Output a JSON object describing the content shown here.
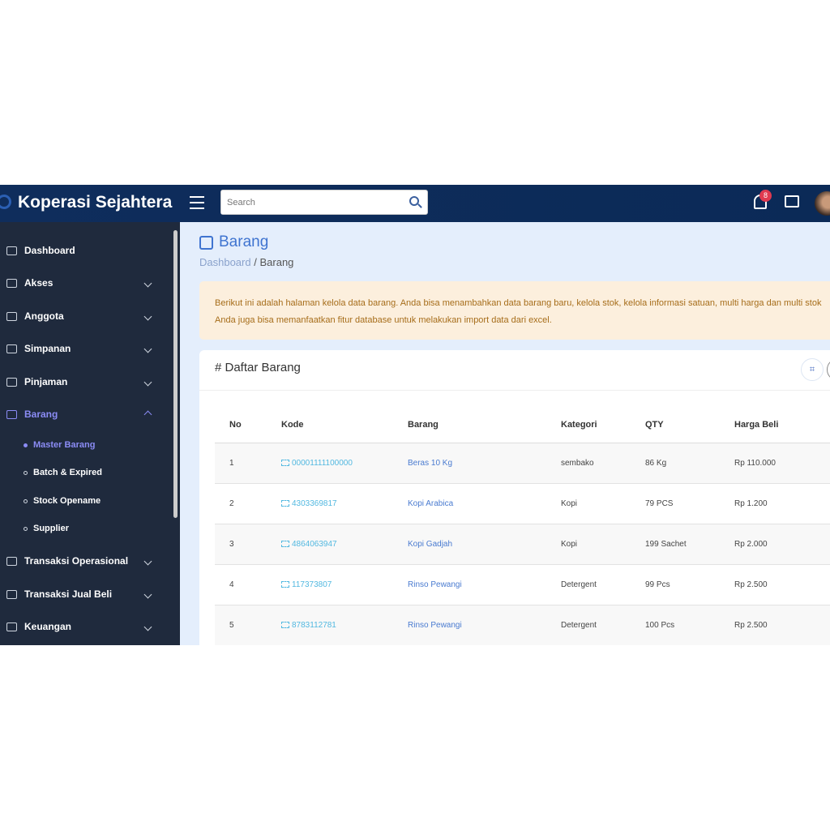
{
  "app": {
    "title": "Koperasi Sejahtera",
    "search_placeholder": "Search",
    "notification_count": "8"
  },
  "sidebar": {
    "items": [
      {
        "label": "Dashboard",
        "icon": "grid-icon"
      },
      {
        "label": "Akses",
        "icon": "user-icon"
      },
      {
        "label": "Anggota",
        "icon": "users-icon"
      },
      {
        "label": "Simpanan",
        "icon": "wallet-icon"
      },
      {
        "label": "Pinjaman",
        "icon": "bank-icon"
      },
      {
        "label": "Barang",
        "icon": "box-icon",
        "active": true
      },
      {
        "label": "Transaksi Operasional",
        "icon": "money-icon"
      },
      {
        "label": "Transaksi Jual Beli",
        "icon": "cart-icon"
      },
      {
        "label": "Keuangan",
        "icon": "diamond-icon"
      }
    ],
    "sub_items": [
      {
        "label": "Master Barang",
        "active": true
      },
      {
        "label": "Batch & Expired"
      },
      {
        "label": "Stock Opename"
      },
      {
        "label": "Supplier"
      }
    ]
  },
  "page": {
    "title": "Barang",
    "breadcrumb": [
      "Dashboard",
      "Barang"
    ],
    "breadcrumb_sep": "/",
    "alert": [
      "Berikut ini adalah halaman kelola data barang. Anda bisa menambahkan data barang baru, kelola stok, kelola informasi satuan, multi harga dan multi stok",
      "Anda juga bisa memanfaatkan fitur database untuk melakukan import data dari excel."
    ]
  },
  "table": {
    "title": "# Daftar Barang",
    "columns": [
      "No",
      "Kode",
      "Barang",
      "Kategori",
      "QTY",
      "Harga Beli"
    ],
    "rows": [
      [
        "1",
        "00001111100000",
        "Beras 10 Kg",
        "sembako",
        "86 Kg",
        "Rp 110.000"
      ],
      [
        "2",
        "4303369817",
        "Kopi Arabica",
        "Kopi",
        "79 PCS",
        "Rp 1.200"
      ],
      [
        "3",
        "4864063947",
        "Kopi Gadjah",
        "Kopi",
        "199 Sachet",
        "Rp 2.000"
      ],
      [
        "4",
        "117373807",
        "Rinso Pewangi",
        "Detergent",
        "99 Pcs",
        "Rp 2.500"
      ],
      [
        "5",
        "8783112781",
        "Rinso Pewangi",
        "Detergent",
        "100 Pcs",
        "Rp 2.500"
      ]
    ]
  }
}
